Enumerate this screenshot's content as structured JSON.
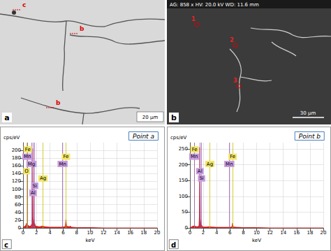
{
  "micrographs": [
    {
      "panel": "a",
      "scale_bar": "20 µm",
      "points": [
        "c",
        "b",
        "b"
      ]
    },
    {
      "panel": "b",
      "scale_bar": "30 µm",
      "info": "AG: 858 x HV: 20.0 kV WD: 11.6 mm",
      "points": [
        "1",
        "2",
        "3"
      ]
    }
  ],
  "chart_data": [
    {
      "type": "line",
      "panel": "c",
      "title": "Point a",
      "x_label": "keV",
      "y_label": "cps/eV",
      "color": "#cc0000",
      "x": [
        0,
        0.2,
        0.4,
        0.52,
        0.6,
        0.7,
        0.8,
        1.0,
        1.15,
        1.25,
        1.35,
        1.42,
        1.49,
        1.56,
        1.65,
        1.74,
        1.85,
        2.0,
        2.5,
        2.98,
        3.2,
        4,
        5,
        5.8,
        5.9,
        6.0,
        6.3,
        6.4,
        6.5,
        7.0,
        7.05,
        7.2,
        8,
        10,
        12,
        14,
        16,
        18,
        20
      ],
      "values": [
        0,
        4,
        6,
        12,
        7,
        8,
        6,
        4,
        5,
        9,
        6,
        30,
        205,
        25,
        7,
        12,
        5,
        4,
        3,
        5,
        3,
        2,
        2,
        2,
        4,
        2,
        4,
        22,
        4,
        3,
        5,
        2,
        1,
        1,
        0,
        0,
        0,
        0,
        0
      ],
      "xlim": [
        0,
        20
      ],
      "xticks": [
        0,
        2,
        4,
        6,
        8,
        10,
        12,
        14,
        16,
        18,
        20
      ],
      "ylim": [
        0,
        220
      ],
      "yticks": [
        0,
        20,
        40,
        60,
        80,
        100,
        120,
        140,
        160,
        180,
        200
      ],
      "grid": true,
      "peaks": [
        {
          "label": "Fe",
          "x": 0.7
        },
        {
          "label": "Mn",
          "x": 0.64
        },
        {
          "label": "Mg",
          "x": 1.25
        },
        {
          "label": "O",
          "x": 0.52
        },
        {
          "label": "Ag",
          "x": 2.98
        },
        {
          "label": "Si",
          "x": 1.74
        },
        {
          "label": "Al",
          "x": 1.49
        },
        {
          "label": "Fe",
          "x": 6.4
        },
        {
          "label": "Mn",
          "x": 5.9
        }
      ]
    },
    {
      "type": "line",
      "panel": "d",
      "title": "Point b",
      "x_label": "keV",
      "y_label": "cps/eV",
      "color": "#cc0000",
      "x": [
        0,
        0.2,
        0.4,
        0.52,
        0.6,
        0.7,
        0.8,
        1.0,
        1.15,
        1.25,
        1.35,
        1.42,
        1.49,
        1.56,
        1.65,
        1.74,
        1.85,
        2.0,
        2.5,
        2.98,
        3.2,
        4,
        5,
        5.8,
        5.9,
        6.0,
        6.3,
        6.4,
        6.5,
        7.0,
        7.05,
        7.2,
        8,
        10,
        12,
        14,
        16,
        18,
        20
      ],
      "values": [
        0,
        3,
        5,
        6,
        6,
        7,
        5,
        4,
        4,
        5,
        5,
        35,
        255,
        30,
        6,
        10,
        4,
        3,
        3,
        4,
        3,
        2,
        2,
        2,
        3,
        2,
        3,
        15,
        3,
        2,
        3,
        2,
        1,
        1,
        0,
        0,
        0,
        0,
        0
      ],
      "xlim": [
        0,
        20
      ],
      "xticks": [
        0,
        2,
        4,
        6,
        8,
        10,
        12,
        14,
        16,
        18,
        20
      ],
      "ylim": [
        0,
        270
      ],
      "yticks": [
        0,
        50,
        100,
        150,
        200,
        250
      ],
      "grid": true,
      "peaks": [
        {
          "label": "Fe",
          "x": 0.7
        },
        {
          "label": "Mn",
          "x": 0.64
        },
        {
          "label": "Ag",
          "x": 2.98
        },
        {
          "label": "Al",
          "x": 1.49
        },
        {
          "label": "Si",
          "x": 1.74
        },
        {
          "label": "Fe",
          "x": 6.4
        },
        {
          "label": "Mn",
          "x": 5.9
        }
      ]
    }
  ]
}
